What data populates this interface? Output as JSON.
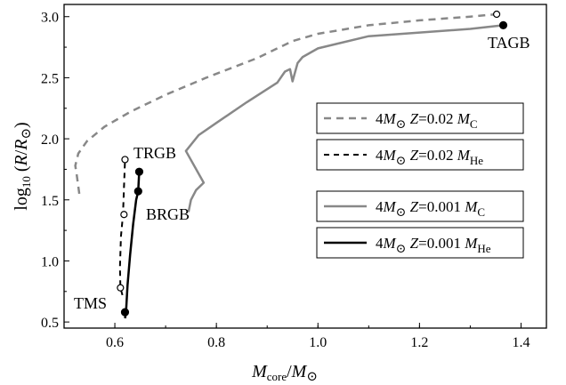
{
  "chart_data": {
    "type": "line",
    "xlabel": "M_core/M_⊙",
    "ylabel": "log10 (R/R_⊙)",
    "xlim": [
      0.5,
      1.45
    ],
    "ylim": [
      0.45,
      3.1
    ],
    "x_ticks": [
      "0.6",
      "0.8",
      "1.0",
      "1.2",
      "1.4"
    ],
    "x_tick_values": [
      0.6,
      0.8,
      1.0,
      1.2,
      1.4
    ],
    "y_ticks": [
      "0.5",
      "1.0",
      "1.5",
      "2.0",
      "2.5",
      "3.0"
    ],
    "y_tick_values": [
      0.5,
      1.0,
      1.5,
      2.0,
      2.5,
      3.0
    ],
    "legend_placement": "right",
    "series": [
      {
        "legend": {
          "pre": "4M",
          "mid": " Z=0.02 M",
          "sub": "C"
        },
        "color": "#888888",
        "dash": "8,6",
        "width": 2.5,
        "x": [
          0.53,
          0.525,
          0.522,
          0.528,
          0.545,
          0.58,
          0.63,
          0.7,
          0.78,
          0.88,
          0.95,
          1.0,
          1.1,
          1.2,
          1.3,
          1.352
        ],
        "y": [
          1.55,
          1.7,
          1.78,
          1.88,
          1.98,
          2.1,
          2.22,
          2.36,
          2.5,
          2.66,
          2.8,
          2.86,
          2.93,
          2.97,
          3.0,
          3.02
        ]
      },
      {
        "legend": {
          "pre": "4M",
          "mid": " Z=0.02 M",
          "sub": "He"
        },
        "color": "#000000",
        "dash": "6,5",
        "width": 2,
        "x": [
          0.615,
          0.611,
          0.61,
          0.612,
          0.616,
          0.618,
          0.62
        ],
        "y": [
          0.72,
          0.78,
          0.95,
          1.2,
          1.38,
          1.6,
          1.83
        ]
      },
      {
        "legend": {
          "pre": "4M",
          "mid": " Z=0.001 M",
          "sub": "C"
        },
        "color": "#888888",
        "dash": "",
        "width": 2.5,
        "x": [
          0.745,
          0.75,
          0.76,
          0.775,
          0.74,
          0.765,
          0.8,
          0.86,
          0.92,
          0.935,
          0.945,
          0.95,
          0.96,
          0.97,
          1.0,
          1.1,
          1.2,
          1.3,
          1.365
        ],
        "y": [
          1.4,
          1.5,
          1.58,
          1.64,
          1.9,
          2.03,
          2.13,
          2.3,
          2.46,
          2.55,
          2.57,
          2.47,
          2.62,
          2.67,
          2.74,
          2.84,
          2.87,
          2.9,
          2.93
        ]
      },
      {
        "legend": {
          "pre": "4M",
          "mid": " Z=0.001 M",
          "sub": "He"
        },
        "color": "#000000",
        "dash": "",
        "width": 2.5,
        "x": [
          0.62,
          0.622,
          0.625,
          0.63,
          0.636,
          0.642,
          0.646,
          0.648
        ],
        "y": [
          0.53,
          0.58,
          0.8,
          1.05,
          1.3,
          1.5,
          1.57,
          1.73
        ]
      }
    ],
    "markers": [
      {
        "x": 1.352,
        "y": 3.02,
        "filled": false
      },
      {
        "x": 1.365,
        "y": 2.93,
        "filled": true
      },
      {
        "x": 0.62,
        "y": 1.83,
        "filled": false
      },
      {
        "x": 0.618,
        "y": 1.38,
        "filled": false
      },
      {
        "x": 0.611,
        "y": 0.78,
        "filled": false
      },
      {
        "x": 0.648,
        "y": 1.73,
        "filled": true
      },
      {
        "x": 0.646,
        "y": 1.57,
        "filled": true
      },
      {
        "x": 0.62,
        "y": 0.58,
        "filled": true
      }
    ],
    "annotations": [
      "TAGB",
      "TRGB",
      "BRGB",
      "TMS"
    ]
  }
}
